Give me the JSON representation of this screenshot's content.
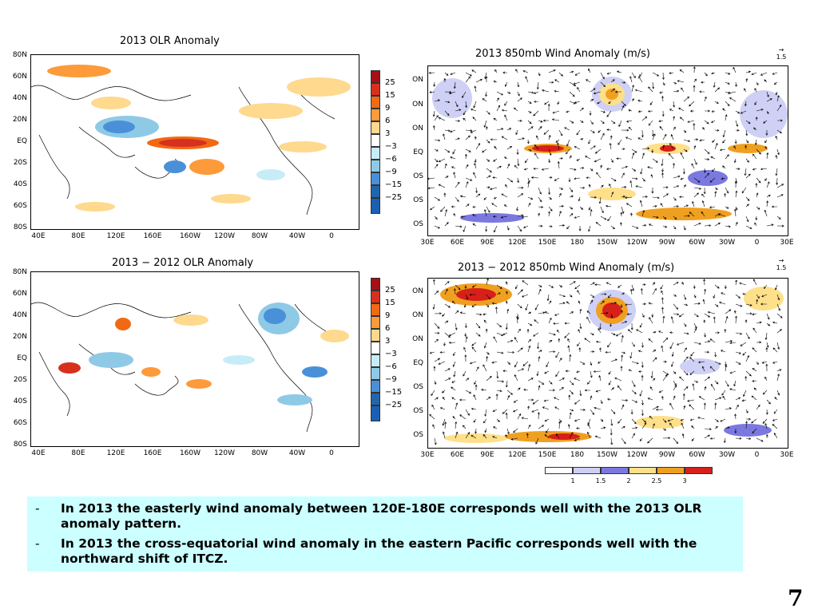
{
  "panels": {
    "olr_2013": {
      "title": "2013 OLR Anomaly",
      "y_labels": [
        "80N",
        "60N",
        "40N",
        "20N",
        "EQ",
        "20S",
        "40S",
        "60S",
        "80S"
      ],
      "x_labels": [
        "40E",
        "80E",
        "120E",
        "160E",
        "160W",
        "120W",
        "80W",
        "40W",
        "0"
      ]
    },
    "wind_2013": {
      "title": "2013 850mb Wind Anomaly (m/s)",
      "y_labels": [
        "ON",
        "ON",
        "ON",
        "EQ",
        "OS",
        "OS",
        "OS"
      ],
      "x_labels": [
        "30E",
        "60E",
        "90E",
        "120E",
        "150E",
        "180",
        "150W",
        "120W",
        "90W",
        "60W",
        "30W",
        "0",
        "30E"
      ],
      "ref_vector": "1.5"
    },
    "olr_diff": {
      "title": "2013 − 2012 OLR Anomaly",
      "y_labels": [
        "80N",
        "60N",
        "40N",
        "20N",
        "EQ",
        "20S",
        "40S",
        "60S",
        "80S"
      ],
      "x_labels": [
        "40E",
        "80E",
        "120E",
        "160E",
        "160W",
        "120W",
        "80W",
        "40W",
        "0"
      ]
    },
    "wind_diff": {
      "title": "2013 − 2012 850mb Wind Anomaly (m/s)",
      "y_labels": [
        "ON",
        "ON",
        "ON",
        "EQ",
        "OS",
        "OS",
        "OS"
      ],
      "x_labels": [
        "30E",
        "60E",
        "90E",
        "120E",
        "150E",
        "180",
        "150W",
        "120W",
        "90W",
        "60W",
        "30W",
        "0",
        "30E"
      ],
      "ref_vector": "1.5"
    }
  },
  "olr_colorbar": {
    "labels": [
      "25",
      "15",
      "9",
      "6",
      "3",
      "−3",
      "−6",
      "−9",
      "−15",
      "−25"
    ],
    "colors": [
      "#a50f15",
      "#d7301f",
      "#f16913",
      "#fd9a3a",
      "#fed98e",
      "#ffffff",
      "#c6ecf7",
      "#8ecae6",
      "#4a90d9",
      "#2166ac",
      "#1a5fb4"
    ]
  },
  "wind_colorbar": {
    "labels": [
      "1",
      "1.5",
      "2",
      "2.5",
      "3"
    ],
    "colors": [
      "#ffffff",
      "#cfd0f5",
      "#7b79e0",
      "#ffe08a",
      "#f0a020",
      "#d7201a"
    ]
  },
  "notes": [
    {
      "bullet": "-",
      "text": "In 2013 the easterly wind anomaly between 120E-180E corresponds well with the 2013 OLR anomaly pattern."
    },
    {
      "bullet": "-",
      "text": "In 2013 the cross-equatorial wind anomaly in the eastern Pacific corresponds well with the northward shift of ITCZ."
    }
  ],
  "page_number": "7"
}
